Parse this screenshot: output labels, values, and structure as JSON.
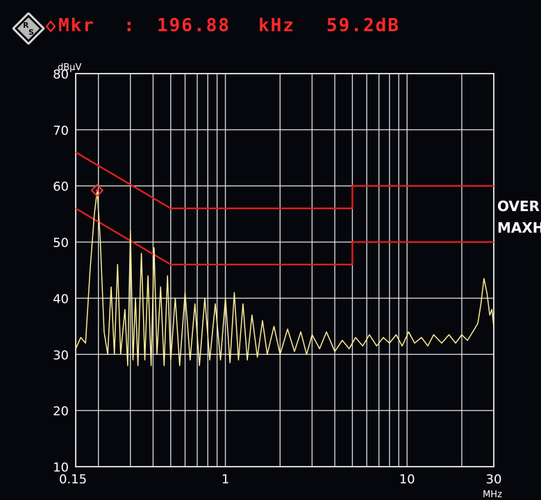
{
  "marker": {
    "label": "Mkr",
    "separator": ":",
    "frequency": "196.88",
    "frequency_unit": "kHz",
    "level": "59.2dB"
  },
  "side_labels": {
    "overwrite": "OVER",
    "max_hold": "MAXH"
  },
  "colors": {
    "background": "#06070c",
    "grid": "#d8d8d8",
    "limit_lines": "#e02020",
    "trace": "#ffef9a",
    "marker": "#ff3030"
  },
  "icons": {
    "logo": "rohde-schwarz-logo-icon",
    "marker": "diamond-marker-icon"
  },
  "chart_data": {
    "type": "line",
    "ylabel": "dBµV",
    "xlabel": "MHz",
    "x_scale": "log",
    "xlim": [
      0.15,
      30
    ],
    "ylim": [
      10,
      80
    ],
    "grid": true,
    "x_tick_labels": [
      {
        "x": 0.15,
        "label": "0.15"
      },
      {
        "x": 1,
        "label": "1"
      },
      {
        "x": 10,
        "label": "10"
      },
      {
        "x": 30,
        "label": "30"
      }
    ],
    "y_ticks": [
      10,
      20,
      30,
      40,
      50,
      60,
      70,
      80
    ],
    "series": [
      {
        "kind": "limit",
        "points": [
          [
            0.15,
            66
          ],
          [
            0.5,
            56
          ],
          [
            5,
            56
          ],
          [
            5,
            60
          ],
          [
            30,
            60
          ]
        ]
      },
      {
        "kind": "limit",
        "points": [
          [
            0.15,
            56
          ],
          [
            0.5,
            46
          ],
          [
            5,
            46
          ],
          [
            5,
            50
          ],
          [
            30,
            50
          ]
        ]
      },
      {
        "kind": "trace",
        "points": [
          [
            0.15,
            31
          ],
          [
            0.16,
            33
          ],
          [
            0.17,
            32
          ],
          [
            0.18,
            45
          ],
          [
            0.19,
            55
          ],
          [
            0.197,
            59.2
          ],
          [
            0.205,
            50
          ],
          [
            0.215,
            34
          ],
          [
            0.225,
            30
          ],
          [
            0.235,
            42
          ],
          [
            0.245,
            30
          ],
          [
            0.255,
            46
          ],
          [
            0.265,
            30
          ],
          [
            0.28,
            38
          ],
          [
            0.29,
            28
          ],
          [
            0.3,
            52
          ],
          [
            0.31,
            29
          ],
          [
            0.32,
            40
          ],
          [
            0.33,
            28
          ],
          [
            0.345,
            48
          ],
          [
            0.36,
            29
          ],
          [
            0.375,
            44
          ],
          [
            0.39,
            28
          ],
          [
            0.405,
            49
          ],
          [
            0.42,
            30
          ],
          [
            0.44,
            42
          ],
          [
            0.46,
            28
          ],
          [
            0.48,
            44
          ],
          [
            0.5,
            29
          ],
          [
            0.53,
            40
          ],
          [
            0.56,
            28
          ],
          [
            0.6,
            41
          ],
          [
            0.64,
            29
          ],
          [
            0.68,
            39
          ],
          [
            0.72,
            28
          ],
          [
            0.77,
            40
          ],
          [
            0.82,
            29
          ],
          [
            0.88,
            39
          ],
          [
            0.94,
            29
          ],
          [
            1.0,
            40
          ],
          [
            1.06,
            28.5
          ],
          [
            1.12,
            41
          ],
          [
            1.18,
            29
          ],
          [
            1.25,
            39
          ],
          [
            1.32,
            29
          ],
          [
            1.4,
            37
          ],
          [
            1.5,
            29.5
          ],
          [
            1.6,
            36
          ],
          [
            1.7,
            30
          ],
          [
            1.85,
            35
          ],
          [
            2.0,
            30
          ],
          [
            2.2,
            34.5
          ],
          [
            2.4,
            30.5
          ],
          [
            2.6,
            34
          ],
          [
            2.8,
            30
          ],
          [
            3.0,
            33.5
          ],
          [
            3.3,
            31
          ],
          [
            3.6,
            34
          ],
          [
            4.0,
            30.5
          ],
          [
            4.4,
            32.5
          ],
          [
            4.8,
            31
          ],
          [
            5.2,
            33
          ],
          [
            5.7,
            31.5
          ],
          [
            6.2,
            33.5
          ],
          [
            6.8,
            31.5
          ],
          [
            7.4,
            33
          ],
          [
            8.0,
            32
          ],
          [
            8.7,
            33.5
          ],
          [
            9.4,
            31.5
          ],
          [
            10.2,
            34
          ],
          [
            11,
            32
          ],
          [
            12,
            33
          ],
          [
            13,
            31.5
          ],
          [
            14,
            33.5
          ],
          [
            15.5,
            32
          ],
          [
            17,
            33.5
          ],
          [
            18.5,
            32
          ],
          [
            20,
            33.5
          ],
          [
            21.5,
            32.5
          ],
          [
            23,
            34
          ],
          [
            24.5,
            35.5
          ],
          [
            25.5,
            39
          ],
          [
            26.5,
            43.5
          ],
          [
            27.5,
            41
          ],
          [
            28.5,
            37
          ],
          [
            29.3,
            38
          ],
          [
            30,
            35
          ]
        ]
      }
    ],
    "marker_point": {
      "x": 0.19688,
      "y": 59.2
    }
  }
}
